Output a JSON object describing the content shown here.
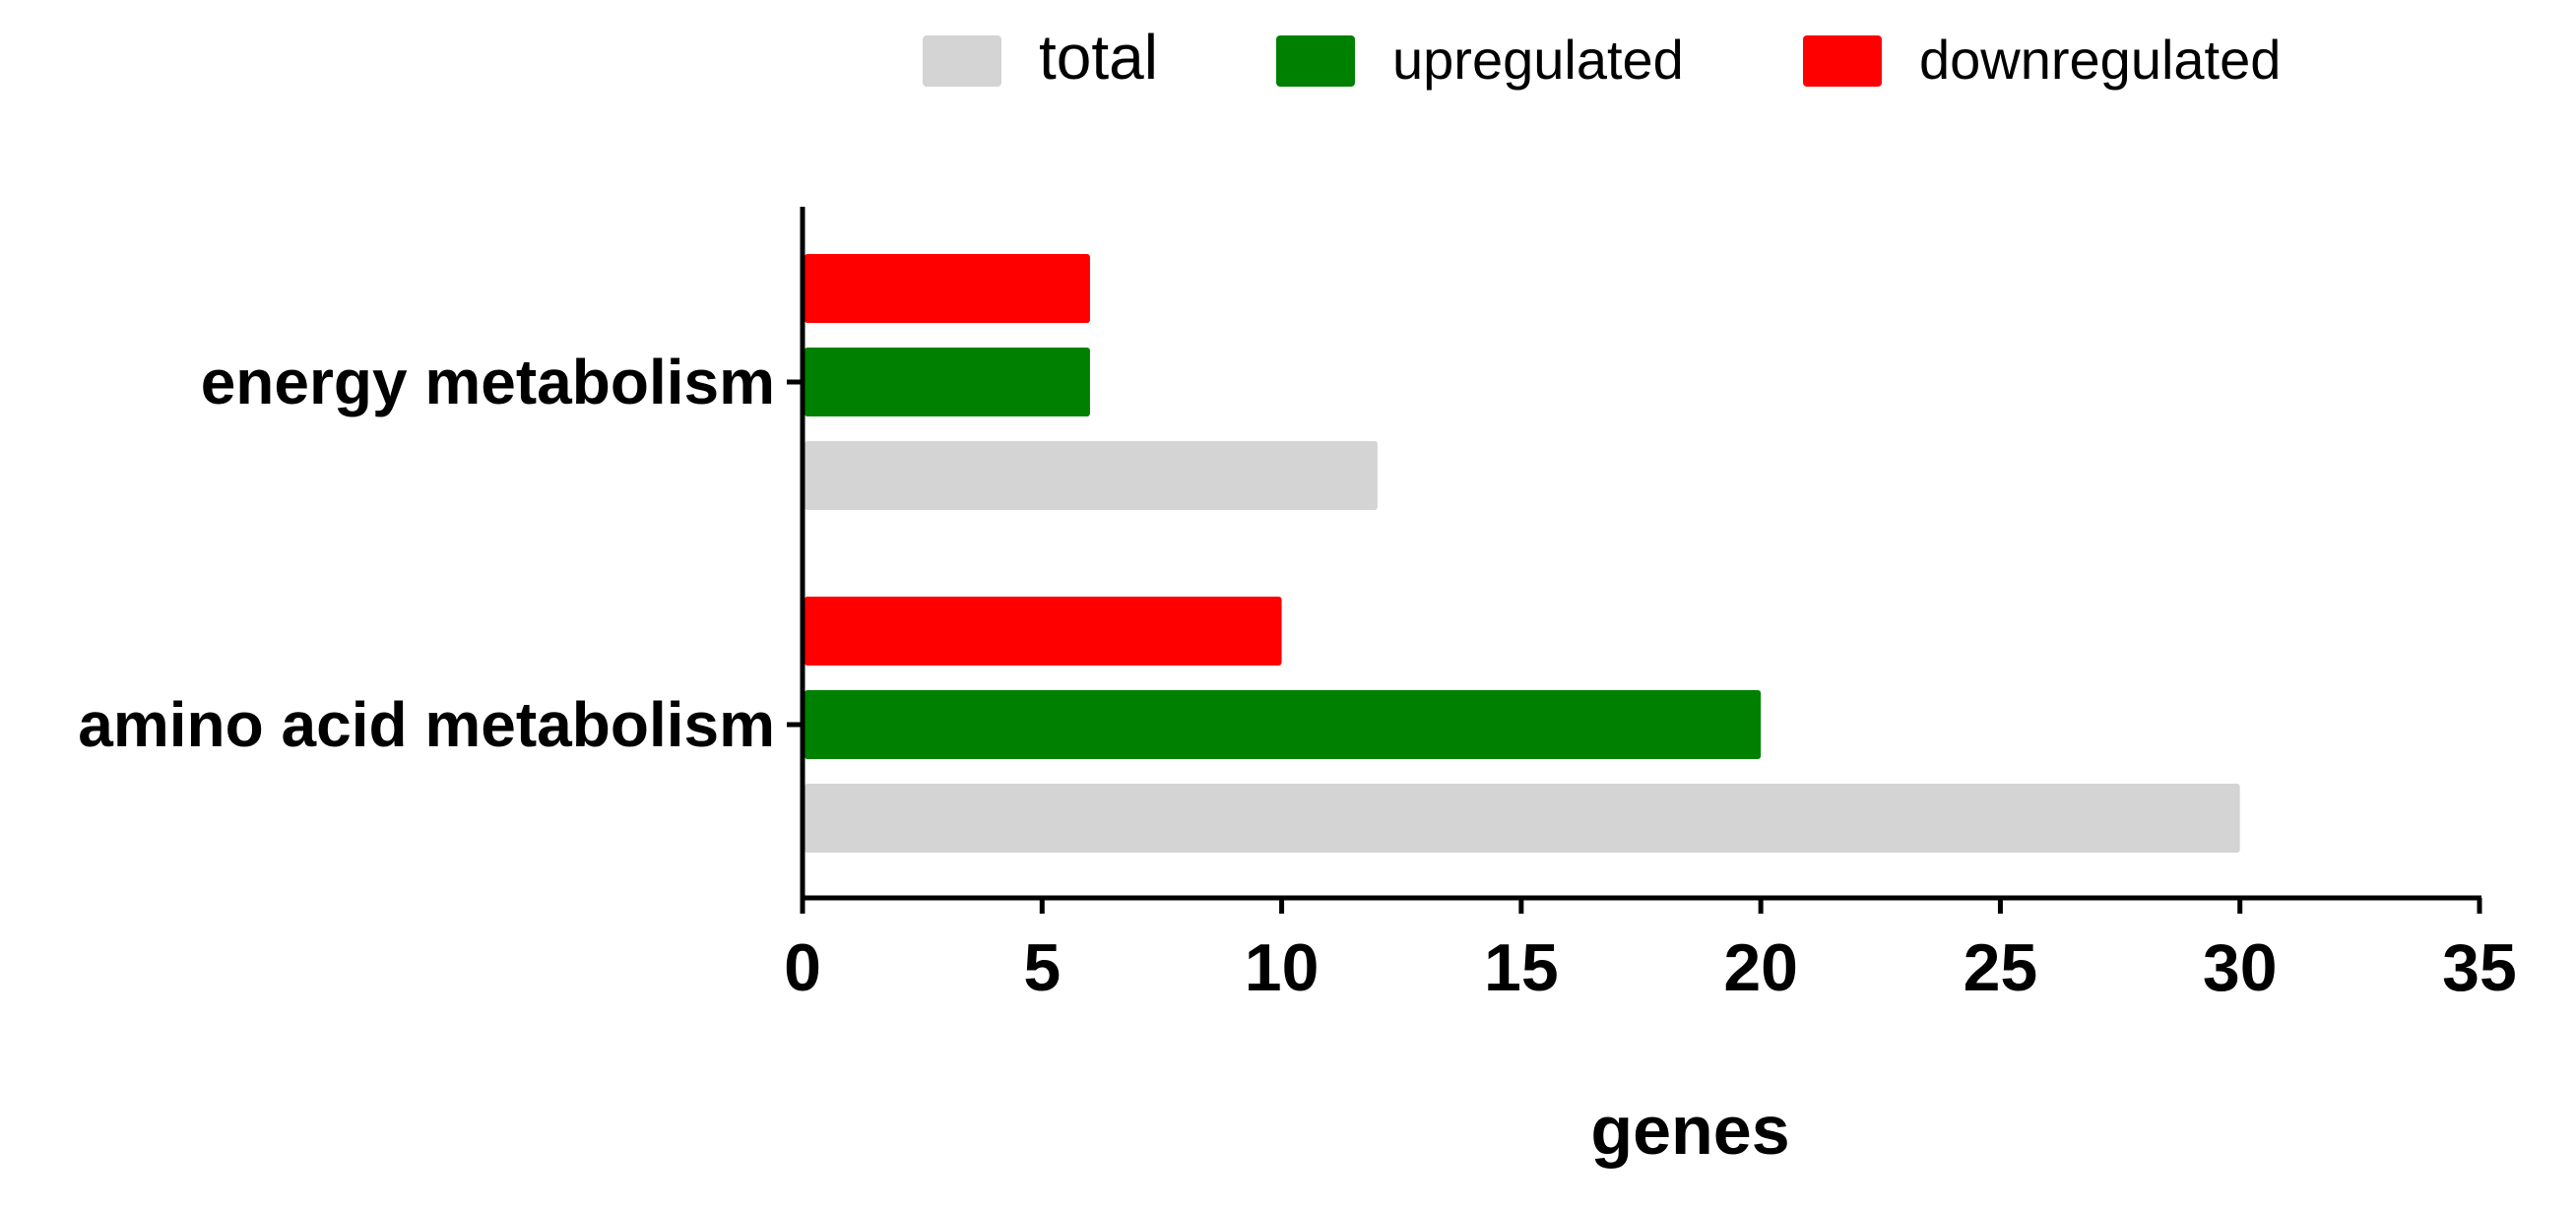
{
  "chart_data": {
    "type": "bar",
    "orientation": "horizontal",
    "categories": [
      "energy metabolism",
      "amino acid metabolism"
    ],
    "series": [
      {
        "name": "total",
        "color": "#d4d4d4",
        "values": [
          12,
          30
        ]
      },
      {
        "name": "upregulated",
        "color": "#008000",
        "values": [
          6,
          20
        ]
      },
      {
        "name": "downregulated",
        "color": "#ff0000",
        "values": [
          6,
          10
        ]
      }
    ],
    "xlabel": "genes",
    "ylabel": "",
    "xlim": [
      0,
      35
    ],
    "xticks": [
      0,
      5,
      10,
      15,
      20,
      25,
      30,
      35
    ],
    "grid": false,
    "legend_position": "top"
  }
}
